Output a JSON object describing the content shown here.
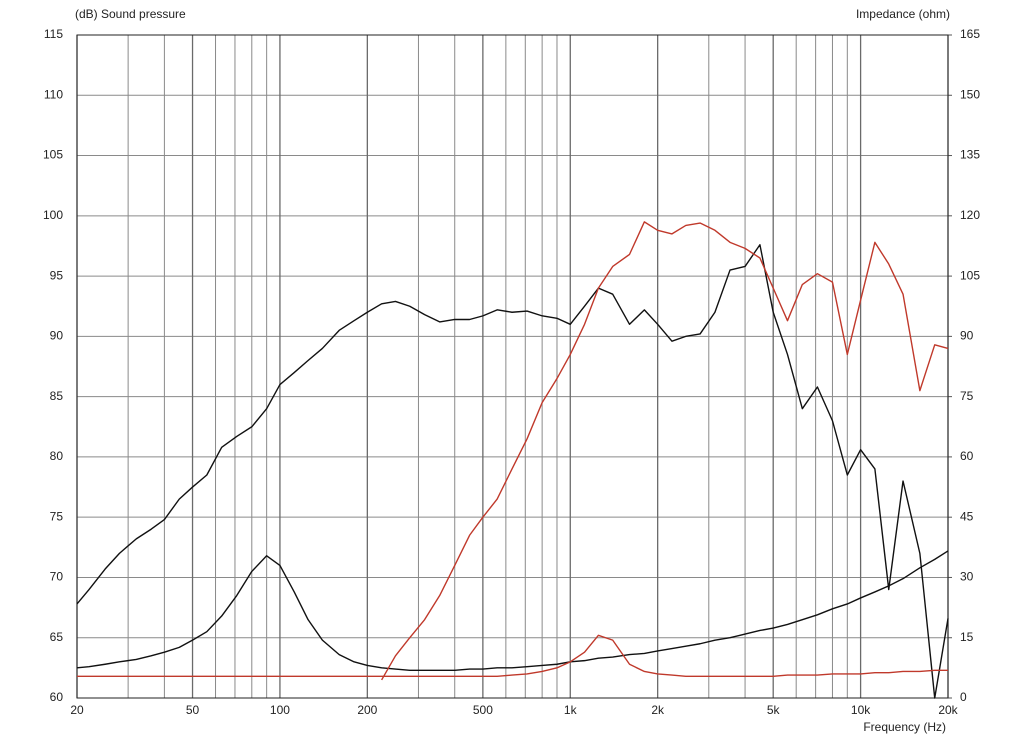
{
  "chart_data": {
    "type": "line",
    "title": "(dB) Sound pressure",
    "y2_label": "Impedance  (ohm)",
    "x_label": "Frequency  (Hz)",
    "xscale": "log",
    "grid": true,
    "xlim": [
      20,
      20000
    ],
    "xticks": [
      20,
      50,
      100,
      200,
      500,
      {
        "value": 1000,
        "label": "1k"
      },
      {
        "value": 2000,
        "label": "2k"
      },
      {
        "value": 5000,
        "label": "5k"
      },
      {
        "value": 10000,
        "label": "10k"
      },
      {
        "value": 20000,
        "label": "20k"
      }
    ],
    "xminor": [
      30,
      40,
      60,
      70,
      80,
      90,
      300,
      400,
      600,
      700,
      800,
      900,
      3000,
      4000,
      6000,
      7000,
      8000,
      9000
    ],
    "ylim": [
      60,
      115
    ],
    "yticks": [
      60,
      65,
      70,
      75,
      80,
      85,
      90,
      95,
      100,
      105,
      110,
      115
    ],
    "y2lim": [
      0,
      165
    ],
    "y2ticks": [
      0,
      15,
      30,
      45,
      60,
      75,
      90,
      105,
      120,
      135,
      150,
      165
    ],
    "x": [
      20,
      22,
      25,
      28,
      32,
      36,
      40,
      45,
      50,
      56,
      63,
      71,
      80,
      90,
      100,
      112,
      125,
      140,
      160,
      180,
      200,
      224,
      250,
      280,
      315,
      355,
      400,
      450,
      500,
      560,
      630,
      710,
      800,
      900,
      1000,
      1120,
      1250,
      1400,
      1600,
      1800,
      2000,
      2240,
      2500,
      2800,
      3150,
      3550,
      4000,
      4500,
      5000,
      5600,
      6300,
      7100,
      8000,
      9000,
      10000,
      11200,
      12500,
      14000,
      16000,
      18000,
      20000
    ],
    "series": [
      {
        "color": "#111111",
        "axis": "y",
        "values": [
          67.8,
          69,
          70.7,
          72,
          73.2,
          74,
          74.8,
          76.5,
          77.5,
          78.5,
          80.8,
          81.7,
          82.5,
          84,
          86,
          87,
          88,
          89,
          90.5,
          91.3,
          92,
          92.7,
          92.9,
          92.5,
          91.8,
          91.2,
          91.4,
          91.4,
          91.7,
          92.2,
          92,
          92.1,
          91.7,
          91.5,
          91,
          92.5,
          94,
          93.5,
          91,
          92.2,
          91,
          89.6,
          90,
          90.2,
          92,
          95.5,
          95.8,
          97.6,
          92,
          88.5,
          84,
          85.8,
          83,
          78.5,
          80.6,
          79,
          69,
          78,
          72,
          60,
          66.6
        ]
      },
      {
        "color": "#111111",
        "axis": "y2",
        "values": [
          7.5,
          7.8,
          8.4,
          9,
          9.6,
          10.5,
          11.4,
          12.6,
          14.4,
          16.5,
          20.4,
          25.5,
          31.5,
          35.4,
          33,
          26.4,
          19.5,
          14.4,
          10.8,
          9,
          8.1,
          7.5,
          7.2,
          6.9,
          6.9,
          6.9,
          6.9,
          7.2,
          7.2,
          7.5,
          7.5,
          7.8,
          8.1,
          8.4,
          9,
          9.3,
          9.9,
          10.2,
          10.8,
          11.1,
          11.7,
          12.3,
          12.9,
          13.5,
          14.4,
          15,
          15.9,
          16.8,
          17.4,
          18.3,
          19.5,
          20.7,
          22.2,
          23.4,
          24.9,
          26.4,
          27.9,
          29.7,
          32.4,
          34.5,
          36.6
        ]
      },
      {
        "color": "#c0392b",
        "axis": "y",
        "values": [
          null,
          null,
          null,
          null,
          null,
          null,
          null,
          null,
          null,
          null,
          null,
          null,
          null,
          null,
          null,
          null,
          null,
          null,
          null,
          null,
          null,
          61.5,
          63.5,
          65,
          66.5,
          68.5,
          71,
          73.5,
          75,
          76.5,
          79,
          81.5,
          84.5,
          86.5,
          88.5,
          91,
          94,
          95.8,
          96.8,
          99.5,
          98.8,
          98.5,
          99.2,
          99.4,
          98.8,
          97.8,
          97.3,
          96.5,
          94,
          91.3,
          94.3,
          95.2,
          94.5,
          88.5,
          93,
          97.8,
          96,
          93.5,
          85.5,
          89.3,
          89
        ]
      },
      {
        "color": "#c0392b",
        "axis": "y2",
        "values": [
          5.4,
          5.4,
          5.4,
          5.4,
          5.4,
          5.4,
          5.4,
          5.4,
          5.4,
          5.4,
          5.4,
          5.4,
          5.4,
          5.4,
          5.4,
          5.4,
          5.4,
          5.4,
          5.4,
          5.4,
          5.4,
          5.4,
          5.4,
          5.4,
          5.4,
          5.4,
          5.4,
          5.4,
          5.4,
          5.4,
          5.7,
          6,
          6.6,
          7.5,
          9,
          11.4,
          15.6,
          14.4,
          8.4,
          6.6,
          6,
          5.7,
          5.4,
          5.4,
          5.4,
          5.4,
          5.4,
          5.4,
          5.4,
          5.7,
          5.7,
          5.7,
          6,
          6,
          6,
          6.3,
          6.3,
          6.6,
          6.6,
          6.9,
          6.9
        ]
      }
    ]
  }
}
